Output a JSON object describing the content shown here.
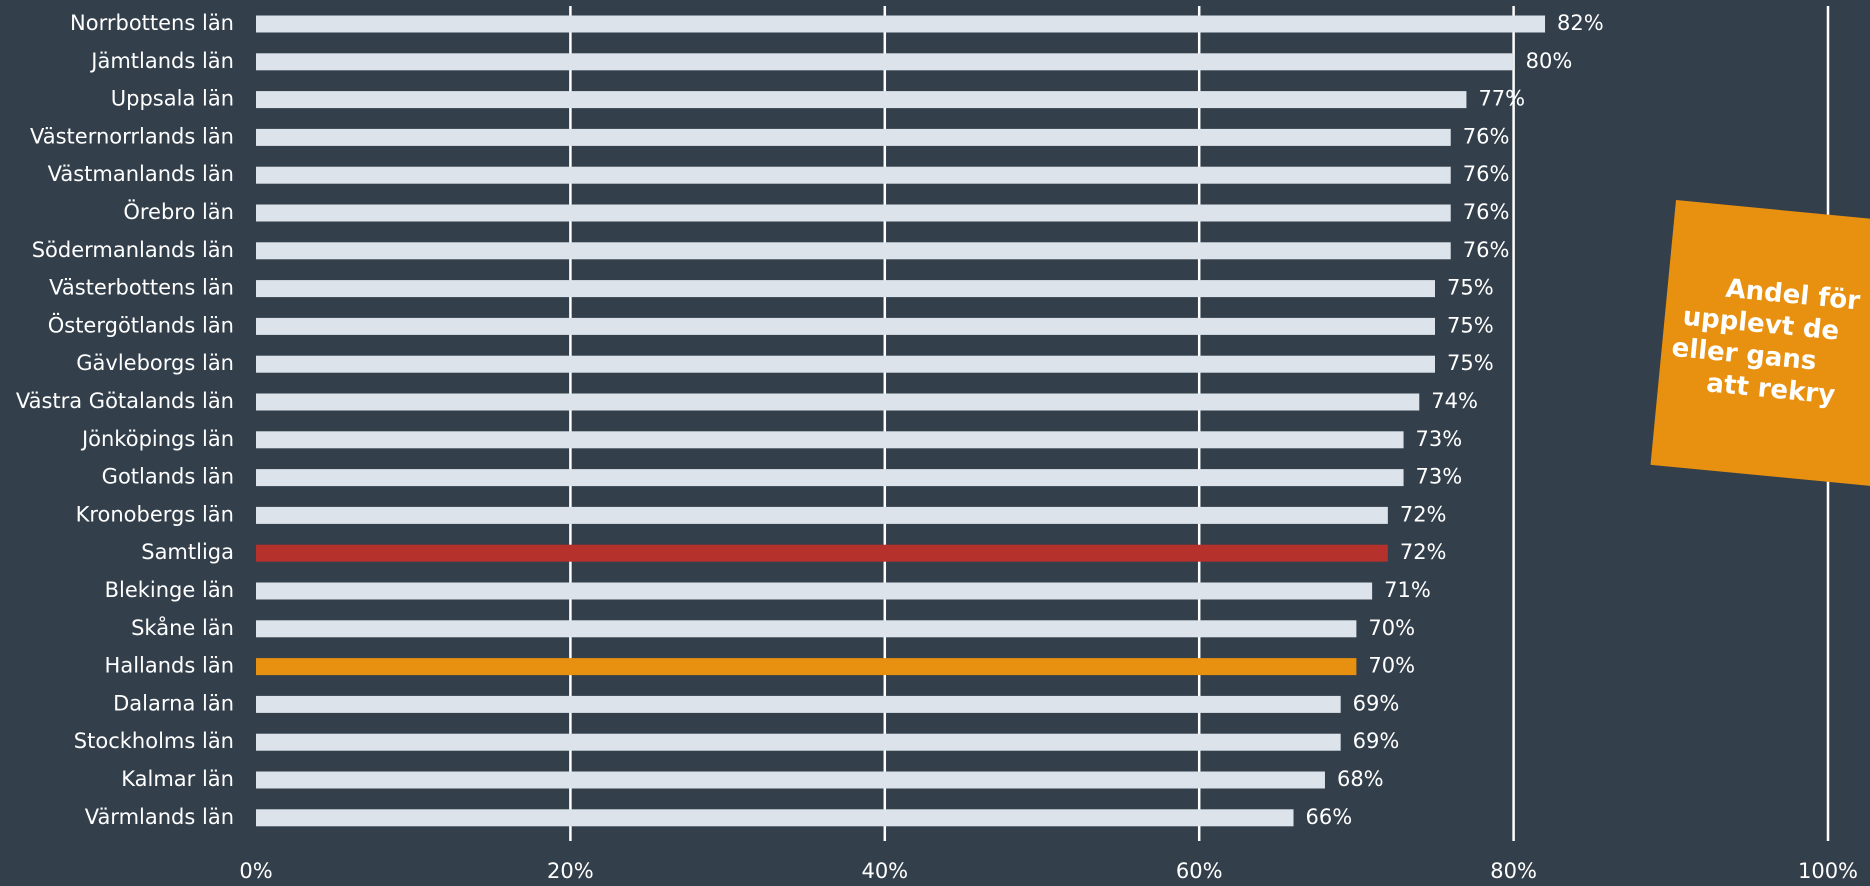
{
  "chart_data": {
    "type": "bar",
    "orientation": "horizontal",
    "categories": [
      "Norrbottens län",
      "Jämtlands län",
      "Uppsala län",
      "Västernorrlands län",
      "Västmanlands län",
      "Örebro län",
      "Södermanlands län",
      "Västerbottens län",
      "Östergötlands län",
      "Gävleborgs län",
      "Västra Götalands län",
      "Jönköpings län",
      "Gotlands län",
      "Kronobergs län",
      "Samtliga",
      "Blekinge län",
      "Skåne län",
      "Hallands län",
      "Dalarna län",
      "Stockholms län",
      "Kalmar län",
      "Värmlands län"
    ],
    "values": [
      82,
      80,
      77,
      76,
      76,
      76,
      76,
      75,
      75,
      75,
      74,
      73,
      73,
      72,
      72,
      71,
      70,
      70,
      69,
      69,
      68,
      66
    ],
    "value_labels": [
      "82%",
      "80%",
      "77%",
      "76%",
      "76%",
      "76%",
      "76%",
      "75%",
      "75%",
      "75%",
      "74%",
      "73%",
      "73%",
      "72%",
      "72%",
      "71%",
      "70%",
      "70%",
      "69%",
      "69%",
      "68%",
      "66%"
    ],
    "colors": [
      "#dde3ea",
      "#dde3ea",
      "#dde3ea",
      "#dde3ea",
      "#dde3ea",
      "#dde3ea",
      "#dde3ea",
      "#dde3ea",
      "#dde3ea",
      "#dde3ea",
      "#dde3ea",
      "#dde3ea",
      "#dde3ea",
      "#dde3ea",
      "#b5312b",
      "#dde3ea",
      "#dde3ea",
      "#e8900f",
      "#dde3ea",
      "#dde3ea",
      "#dde3ea",
      "#dde3ea"
    ],
    "xlim": [
      0,
      100
    ],
    "xticks": [
      {
        "value": 0,
        "label": "0%"
      },
      {
        "value": 20,
        "label": "20%"
      },
      {
        "value": 40,
        "label": "40%"
      },
      {
        "value": 60,
        "label": "60%"
      },
      {
        "value": 80,
        "label": "80%"
      },
      {
        "value": 100,
        "label": "100%"
      }
    ],
    "grid": true,
    "annotation": {
      "lines": [
        "Andel för",
        "upplevt de",
        "eller gans",
        "att rekry"
      ],
      "color": "#e8900f"
    }
  }
}
